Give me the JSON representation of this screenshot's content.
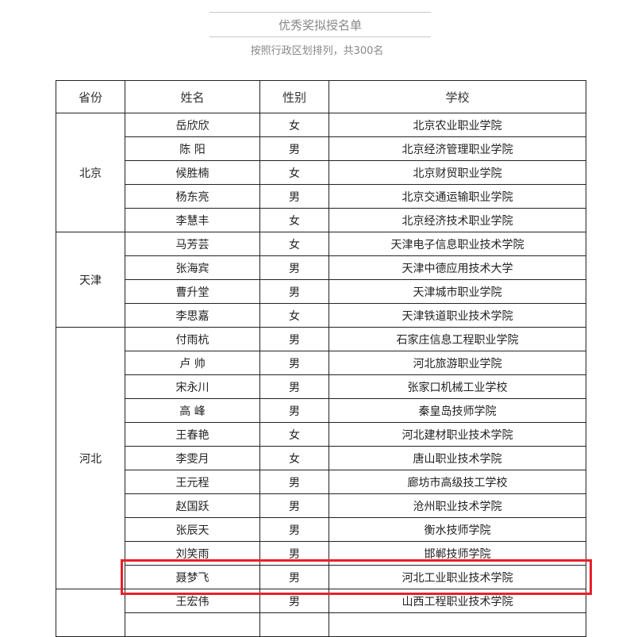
{
  "header": {
    "title": "优秀奖拟授名单",
    "subtitle": "按照行政区划排列，共300名"
  },
  "table": {
    "columns": [
      "省份",
      "姓名",
      "性别",
      "学校"
    ],
    "groups": [
      {
        "province": "北京",
        "rows": [
          [
            "岳欣欣",
            "女",
            "北京农业职业学院"
          ],
          [
            "陈  阳",
            "男",
            "北京经济管理职业学院"
          ],
          [
            "候胜楠",
            "女",
            "北京财贸职业学院"
          ],
          [
            "杨东亮",
            "男",
            "北京交通运输职业学院"
          ],
          [
            "李慧丰",
            "女",
            "北京经济技术职业学院"
          ]
        ]
      },
      {
        "province": "天津",
        "rows": [
          [
            "马芳芸",
            "女",
            "天津电子信息职业技术学院"
          ],
          [
            "张海宾",
            "男",
            "天津中德应用技术大学"
          ],
          [
            "曹升堂",
            "男",
            "天津城市职业学院"
          ],
          [
            "李思嘉",
            "女",
            "天津铁道职业技术学院"
          ]
        ]
      },
      {
        "province": "河北",
        "rows": [
          [
            "付雨杭",
            "男",
            "石家庄信息工程职业学院"
          ],
          [
            "卢  帅",
            "男",
            "河北旅游职业学院"
          ],
          [
            "宋永川",
            "男",
            "张家口机械工业学校"
          ],
          [
            "高  峰",
            "男",
            "秦皇岛技师学院"
          ],
          [
            "王春艳",
            "女",
            "河北建材职业技术学院"
          ],
          [
            "李雯月",
            "女",
            "唐山职业技术学院"
          ],
          [
            "王元程",
            "男",
            "廊坊市高级技工学校"
          ],
          [
            "赵国跃",
            "男",
            "沧州职业技术学院"
          ],
          [
            "张辰天",
            "男",
            "衡水技师学院"
          ],
          [
            "刘笑雨",
            "男",
            "邯郸技师学院"
          ],
          [
            "聂梦飞",
            "男",
            "河北工业职业技术学院"
          ]
        ]
      },
      {
        "province": "",
        "rows": [
          [
            "王宏伟",
            "男",
            "山西工程职业技术学院"
          ],
          [
            "",
            "",
            ""
          ]
        ]
      }
    ]
  },
  "highlight_color": "#e8202a"
}
